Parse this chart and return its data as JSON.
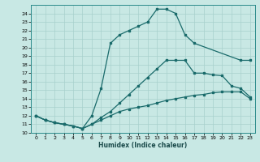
{
  "xlabel": "Humidex (Indice chaleur)",
  "ylabel": "",
  "xlim": [
    -0.5,
    23.5
  ],
  "ylim": [
    10,
    25
  ],
  "yticks": [
    10,
    11,
    12,
    13,
    14,
    15,
    16,
    17,
    18,
    19,
    20,
    21,
    22,
    23,
    24
  ],
  "xticks": [
    0,
    1,
    2,
    3,
    4,
    5,
    6,
    7,
    8,
    9,
    10,
    11,
    12,
    13,
    14,
    15,
    16,
    17,
    18,
    19,
    20,
    21,
    22,
    23
  ],
  "bg_color": "#c8e8e4",
  "grid_color": "#a8d0cc",
  "line_color": "#1a6b6b",
  "line1_x": [
    0,
    1,
    2,
    3,
    4,
    5,
    6,
    7,
    8,
    9,
    10,
    11,
    12,
    13,
    14,
    15,
    16,
    17,
    18,
    19,
    20,
    21,
    22,
    23
  ],
  "line1_y": [
    12.0,
    11.5,
    11.2,
    11.0,
    10.8,
    10.5,
    11.0,
    11.5,
    12.0,
    12.5,
    12.8,
    13.0,
    13.2,
    13.5,
    13.8,
    14.0,
    14.2,
    14.4,
    14.5,
    14.7,
    14.8,
    14.8,
    14.8,
    14.0
  ],
  "line2_x": [
    0,
    1,
    2,
    3,
    4,
    5,
    6,
    7,
    8,
    9,
    10,
    11,
    12,
    13,
    14,
    15,
    16,
    17,
    18,
    19,
    20,
    21,
    22,
    23
  ],
  "line2_y": [
    12.0,
    11.5,
    11.2,
    11.0,
    10.8,
    10.5,
    11.0,
    11.8,
    12.5,
    13.5,
    14.5,
    15.5,
    16.5,
    17.5,
    18.5,
    18.5,
    18.5,
    17.0,
    17.0,
    16.8,
    16.7,
    15.5,
    15.2,
    14.2
  ],
  "line3_x": [
    0,
    1,
    2,
    3,
    4,
    5,
    6,
    7,
    8,
    9,
    10,
    11,
    12,
    13,
    14,
    15,
    16,
    17,
    22,
    23
  ],
  "line3_y": [
    12.0,
    11.5,
    11.2,
    11.0,
    10.8,
    10.5,
    12.0,
    15.2,
    20.5,
    21.5,
    22.0,
    22.5,
    23.0,
    24.5,
    24.5,
    24.0,
    21.5,
    20.5,
    18.5,
    18.5
  ]
}
